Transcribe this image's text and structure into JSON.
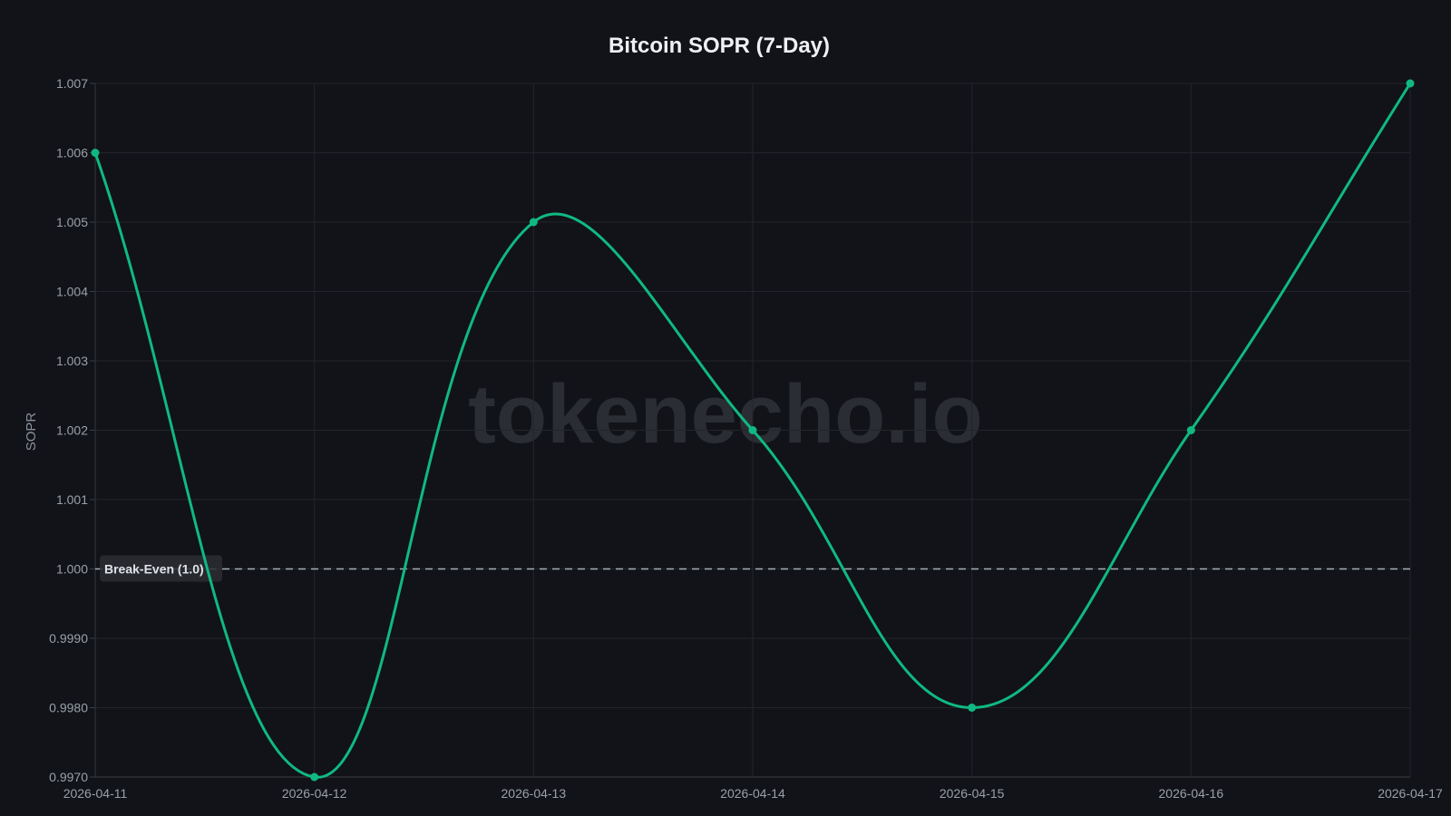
{
  "chart_data": {
    "type": "line",
    "title": "Bitcoin SOPR (7-Day)",
    "xlabel": "",
    "ylabel": "SOPR",
    "x": [
      "2026-04-11",
      "2026-04-12",
      "2026-04-13",
      "2026-04-14",
      "2026-04-15",
      "2026-04-16",
      "2026-04-17"
    ],
    "y": [
      1.006,
      0.997,
      1.005,
      1.002,
      0.998,
      1.002,
      1.007
    ],
    "ylim": [
      0.997,
      1.007
    ],
    "yticks": [
      "0.9970",
      "0.9980",
      "0.9990",
      "1.000",
      "1.001",
      "1.002",
      "1.003",
      "1.004",
      "1.005",
      "1.006",
      "1.007"
    ],
    "yticks_values": [
      0.997,
      0.998,
      0.999,
      1.0,
      1.001,
      1.002,
      1.003,
      1.004,
      1.005,
      1.006,
      1.007
    ],
    "grid": true,
    "line_color": "#10b981",
    "annotation": {
      "label": "Break-Even (1.0)",
      "y": 1.0,
      "style": "dashed"
    },
    "watermark": "tokenecho.io"
  }
}
